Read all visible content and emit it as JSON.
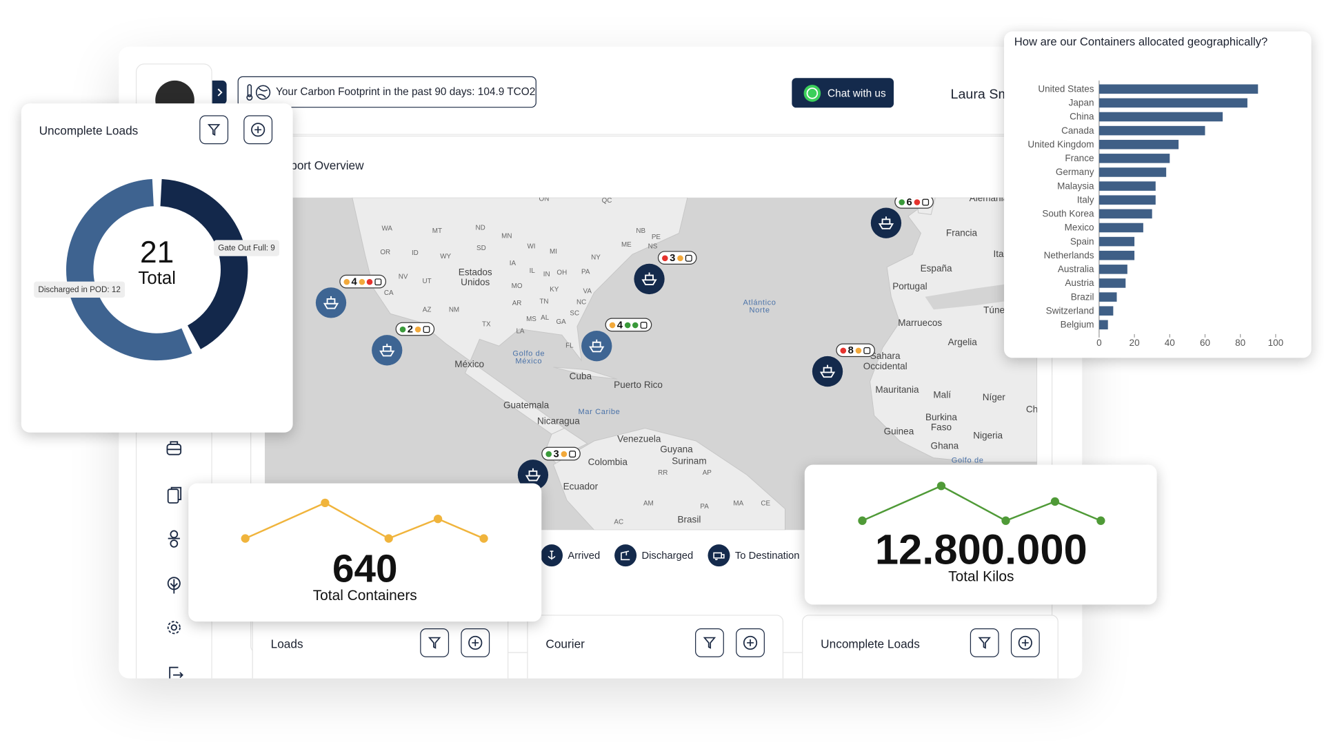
{
  "header": {
    "carbon": "Your Carbon Footprint in the past 90 days: 104.9 TCO2",
    "chat": "Chat with us",
    "user": "Laura Smith"
  },
  "overview": {
    "title": "Transport Overview",
    "map": {
      "states": [
        "WA",
        "MT",
        "ND",
        "MN",
        "OR",
        "ID",
        "WY",
        "SD",
        "NV",
        "UT",
        "CA",
        "AZ",
        "NM",
        "TX",
        "IA",
        "WI",
        "MI",
        "IL",
        "IN",
        "OH",
        "PA",
        "NY",
        "MO",
        "KY",
        "VA",
        "AR",
        "TN",
        "NC",
        "SC",
        "MS",
        "AL",
        "GA",
        "LA",
        "FL",
        "ME",
        "NB",
        "PE",
        "NS",
        "QC",
        "ON",
        "RR",
        "AP",
        "AM",
        "PA",
        "MA",
        "CE",
        "AC"
      ],
      "places": [
        "Estados Unidos",
        "México",
        "Cuba",
        "Puerto Rico",
        "Guatemala",
        "Nicaragua",
        "Venezuela",
        "Guyana",
        "Surinam",
        "Colombia",
        "Ecuador",
        "Brasil",
        "Alemania",
        "Francia",
        "Italia",
        "España",
        "Portugal",
        "Túnez",
        "Marruecos",
        "Argelia",
        "Sahara Occidental",
        "Mauritania",
        "Malí",
        "Níger",
        "Chad",
        "Burkina Faso",
        "Nigeria",
        "Guinea",
        "Ghana"
      ],
      "water": [
        "Golfo de México",
        "Mar Caribe",
        "Atlántico Norte",
        "Golfo de Guinea"
      ]
    },
    "markers": [
      {
        "count": 4,
        "color": "#3e6593",
        "dots": [
          "#f2a93b",
          "#f2a93b",
          "#e5322d"
        ]
      },
      {
        "count": 2,
        "color": "#3e6593",
        "dots": [
          "#3a9a3a",
          "#f2a93b"
        ]
      },
      {
        "count": 3,
        "color": "#142a4c",
        "dots": [
          "#e5322d",
          "#f2a93b"
        ]
      },
      {
        "count": 4,
        "color": "#3e6593",
        "dots": [
          "#f2a93b",
          "#3a9a3a",
          "#3a9a3a"
        ]
      },
      {
        "count": 6,
        "color": "#142a4c",
        "dots": [
          "#3a9a3a",
          "#e5322d"
        ]
      },
      {
        "count": 8,
        "color": "#142a4c",
        "dots": [
          "#e5322d",
          "#f2a93b"
        ]
      },
      {
        "count": 3,
        "color": "#142a4c",
        "dots": [
          "#3a9a3a",
          "#f2a93b"
        ]
      }
    ],
    "legend": [
      "Arrived",
      "Discharged",
      "To Destination"
    ]
  },
  "cards": [
    "Loads",
    "Courier",
    "Uncomplete Loads"
  ],
  "chart_data": [
    {
      "type": "donut",
      "title": "Uncomplete Loads",
      "values": [
        12,
        9
      ],
      "value_labels": [
        "Discharged in POD: 12",
        "Gate Out Full: 9"
      ],
      "colors": [
        "#3e6390",
        "#13284b"
      ],
      "total": 21,
      "total_label": "Total"
    },
    {
      "type": "line",
      "values": [
        1,
        3,
        1,
        2.1,
        1
      ],
      "ylim": [
        0,
        4
      ],
      "color": "#f0b43c",
      "total": 640,
      "total_label": "Total Containers"
    },
    {
      "type": "line",
      "values": [
        1,
        3,
        1,
        2.1,
        1
      ],
      "ylim": [
        0,
        4
      ],
      "color": "#4f9a37",
      "total": {
        "value": 12800000,
        "label": "12.800.000"
      },
      "total_label": "Total Kilos"
    },
    {
      "type": "barh",
      "title": "How are our Containers allocated geographically?",
      "categories": [
        "United States",
        "Japan",
        "China",
        "Canada",
        "United Kingdom",
        "France",
        "Germany",
        "Malaysia",
        "Italy",
        "South Korea",
        "Mexico",
        "Spain",
        "Netherlands",
        "Australia",
        "Austria",
        "Brazil",
        "Switzerland",
        "Belgium"
      ],
      "values": [
        90,
        84,
        70,
        60,
        45,
        40,
        38,
        32,
        32,
        30,
        25,
        20,
        20,
        16,
        15,
        10,
        8,
        5
      ],
      "color": "#3f5f86",
      "xlim": [
        0,
        100
      ],
      "xticks": [
        0,
        20,
        40,
        60,
        80,
        100
      ]
    }
  ]
}
